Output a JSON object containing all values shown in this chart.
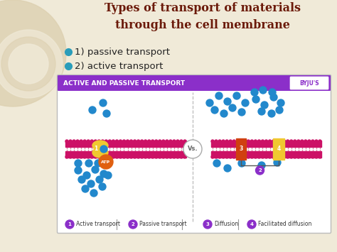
{
  "bg_color": "#f0ead8",
  "title_text": "Types of transport of materials\nthrough the cell membrane",
  "title_color": "#6b1a0a",
  "bullet1": "1) passive transport",
  "bullet2": "2) active transport",
  "bullet_color": "#222222",
  "bullet_dot_color": "#2a9dba",
  "diagram_bg": "#ffffff",
  "diagram_border": "#bbbbbb",
  "diagram_header_bg": "#8b2fc9",
  "diagram_header_text": "ACTIVE AND PASSIVE TRANSPORT",
  "diagram_header_color": "#ffffff",
  "byju_color": "#8b2fc9",
  "membrane_color": "#cc1166",
  "membrane_line_color": "#e080a0",
  "protein_yellow_color": "#f0c830",
  "protein_orange_color": "#f07820",
  "molecule_color": "#2288cc",
  "atp_color": "#e06010",
  "vs_border": "#aaaaaa",
  "legend_dot_color": "#8b2fc9",
  "legend_text_color": "#333333",
  "separator_color": "#999999",
  "bracket_color": "#555555"
}
